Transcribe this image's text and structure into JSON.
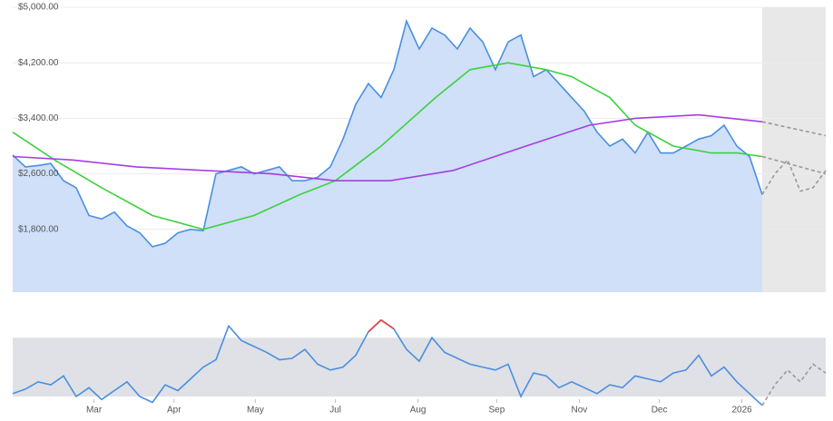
{
  "chart_data": [
    {
      "type": "line",
      "panel": "price",
      "x": [
        0,
        1,
        2,
        3,
        4,
        5,
        6,
        7,
        8,
        9,
        10,
        11,
        12,
        13,
        14,
        15,
        16,
        17,
        18,
        19,
        20,
        21,
        22,
        23,
        24,
        25,
        26,
        27,
        28,
        29,
        30,
        31,
        32,
        33,
        34,
        35,
        36,
        37,
        38,
        39,
        40,
        41,
        42,
        43,
        44,
        45,
        46,
        47,
        48,
        49,
        50,
        51,
        52,
        53,
        54,
        55,
        56,
        57,
        58,
        59
      ],
      "xlim": [
        0,
        64
      ],
      "xticks": [
        {
          "value": 6.4,
          "label": "Mar"
        },
        {
          "value": 12.7,
          "label": "Apr"
        },
        {
          "value": 19.1,
          "label": "May"
        },
        {
          "value": 25.4,
          "label": "Jul"
        },
        {
          "value": 31.9,
          "label": "Aug"
        },
        {
          "value": 38.1,
          "label": "Sep"
        },
        {
          "value": 44.6,
          "label": "Nov"
        },
        {
          "value": 50.9,
          "label": "Dec"
        },
        {
          "value": 57.4,
          "label": "2026"
        }
      ],
      "ylim": [
        895,
        5000
      ],
      "yticks": [
        {
          "value": 1800,
          "label": "$1,800.00"
        },
        {
          "value": 2600,
          "label": "$2,600.00"
        },
        {
          "value": 3400,
          "label": "$3,400.00"
        },
        {
          "value": 4200,
          "label": "$4,200.00"
        },
        {
          "value": 5000,
          "label": "$5,000.00"
        }
      ],
      "grid": true,
      "forecast_from": 59,
      "series": [
        {
          "name": "price",
          "color": "#4a8fe0",
          "values": [
            2870,
            2700,
            2720,
            2750,
            2500,
            2400,
            2000,
            1950,
            2050,
            1850,
            1750,
            1550,
            1600,
            1750,
            1800,
            1780,
            2600,
            2650,
            2700,
            2600,
            2650,
            2700,
            2500,
            2500,
            2550,
            2700,
            3100,
            3600,
            3900,
            3700,
            4100,
            4800,
            4400,
            4700,
            4600,
            4400,
            4700,
            4500,
            4100,
            4500,
            4600,
            4000,
            4100,
            3900,
            3700,
            3500,
            3200,
            3000,
            3100,
            2900,
            3200,
            2900,
            2900,
            3000,
            3100,
            3150,
            3300,
            3000,
            2850,
            2300
          ]
        },
        {
          "name": "ma-short",
          "color": "#3dd13d",
          "x": [
            0,
            3.3,
            7,
            11,
            15,
            19,
            22.6,
            25.4,
            29,
            33.3,
            36,
            39,
            42,
            44,
            47,
            49,
            52,
            55,
            57.037,
            59
          ],
          "values": [
            3200,
            2800,
            2400,
            2000,
            1800,
            2000,
            2300,
            2500,
            3000,
            3700,
            4100,
            4200,
            4100,
            4000,
            3700,
            3300,
            3000,
            2900,
            2900,
            2850
          ]
        },
        {
          "name": "ma-long",
          "color": "#a63de0",
          "x": [
            0,
            4.7,
            9.7,
            15,
            20.4,
            25.4,
            29.7,
            34.7,
            40.4,
            45.4,
            49,
            54,
            59
          ],
          "values": [
            2850,
            2800,
            2700,
            2650,
            2600,
            2500,
            2500,
            2650,
            3000,
            3300,
            3400,
            3450,
            3350
          ]
        },
        {
          "name": "price-forecast",
          "color": "#999999",
          "dashed": true,
          "x": [
            59,
            60,
            61,
            62,
            63,
            64
          ],
          "values": [
            2300,
            2600,
            2800,
            2350,
            2400,
            2650
          ]
        },
        {
          "name": "ma-short-forecast",
          "color": "#999999",
          "dashed": true,
          "x": [
            59,
            64
          ],
          "values": [
            2850,
            2600
          ]
        },
        {
          "name": "ma-long-forecast",
          "color": "#999999",
          "dashed": true,
          "x": [
            59,
            64
          ],
          "values": [
            3350,
            3150
          ]
        }
      ]
    },
    {
      "type": "line",
      "panel": "oscillator",
      "x": [
        0,
        1,
        2,
        3,
        4,
        5,
        6,
        7,
        8,
        9,
        10,
        11,
        12,
        13,
        14,
        15,
        16,
        17,
        18,
        19,
        20,
        21,
        22,
        23,
        24,
        25,
        26,
        27,
        28,
        29,
        30,
        31,
        32,
        33,
        34,
        35,
        36,
        37,
        38,
        39,
        40,
        41,
        42,
        43,
        44,
        45,
        46,
        47,
        48,
        49,
        50,
        51,
        52,
        53,
        54,
        55,
        56,
        57,
        58,
        59
      ],
      "xlim": [
        0,
        64
      ],
      "ylim": [
        22,
        96
      ],
      "band": [
        30,
        70
      ],
      "series": [
        {
          "name": "oscillator",
          "color": "#4a8fe0",
          "alert_color": "#e04a4a",
          "values": [
            32,
            35,
            40,
            38,
            44,
            30,
            36,
            28,
            34,
            40,
            30,
            26,
            38,
            34,
            42,
            50,
            55,
            78,
            68,
            64,
            60,
            55,
            56,
            62,
            52,
            48,
            50,
            58,
            74,
            82,
            76,
            62,
            54,
            70,
            60,
            56,
            52,
            50,
            48,
            52,
            30,
            46,
            44,
            36,
            40,
            36,
            32,
            38,
            36,
            44,
            42,
            40,
            46,
            48,
            58,
            44,
            50,
            40,
            32,
            24
          ]
        },
        {
          "name": "oscillator-forecast",
          "color": "#999999",
          "dashed": true,
          "x": [
            59,
            60,
            61,
            62,
            63,
            64
          ],
          "values": [
            24,
            38,
            48,
            40,
            52,
            46
          ]
        }
      ]
    }
  ]
}
